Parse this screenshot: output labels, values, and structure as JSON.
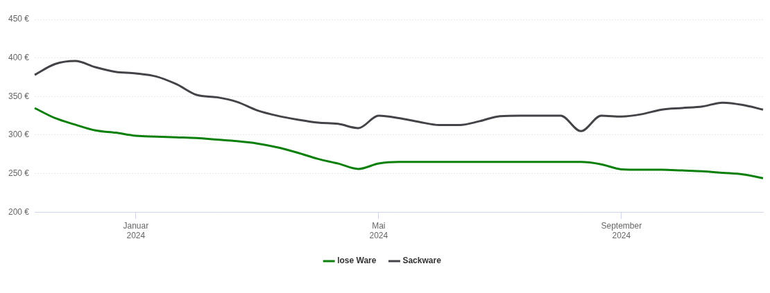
{
  "chart_data": {
    "type": "line",
    "categories": [
      null,
      null,
      null,
      null,
      null,
      "Januar 2024",
      null,
      null,
      null,
      null,
      null,
      null,
      null,
      null,
      null,
      null,
      null,
      "Mai 2024",
      null,
      null,
      null,
      null,
      null,
      null,
      null,
      null,
      null,
      null,
      null,
      "September 2024",
      null,
      null,
      null,
      null,
      null,
      null,
      null
    ],
    "series": [
      {
        "name": "lose Ware",
        "color": "#0a7f0a",
        "values": [
          335,
          322,
          313.5,
          306,
          303,
          299,
          298,
          297,
          296,
          294,
          292,
          289,
          284,
          277,
          269,
          263,
          256,
          263,
          265,
          265,
          265,
          265,
          265,
          265,
          265,
          265,
          265,
          265,
          262,
          255.5,
          255,
          255,
          254,
          253,
          251,
          249,
          244
        ]
      },
      {
        "name": "Sackware",
        "color": "#434348",
        "values": [
          378,
          392,
          396,
          388,
          382,
          380,
          376,
          366,
          352,
          349,
          343,
          332,
          325,
          320,
          316,
          314.5,
          309,
          325,
          322,
          317,
          313,
          313,
          318,
          324.5,
          325,
          325,
          325,
          305,
          325,
          324,
          327,
          333,
          335,
          337,
          342,
          339,
          333
        ]
      }
    ],
    "ylim": [
      200,
      450
    ],
    "yticks": [
      {
        "value": 200,
        "label": "200 €"
      },
      {
        "value": 250,
        "label": "250 €"
      },
      {
        "value": 300,
        "label": "300 €"
      },
      {
        "value": 350,
        "label": "350 €"
      },
      {
        "value": 400,
        "label": "400 €"
      },
      {
        "value": 450,
        "label": "450 €"
      }
    ],
    "grid": true,
    "legend": "bottom"
  }
}
